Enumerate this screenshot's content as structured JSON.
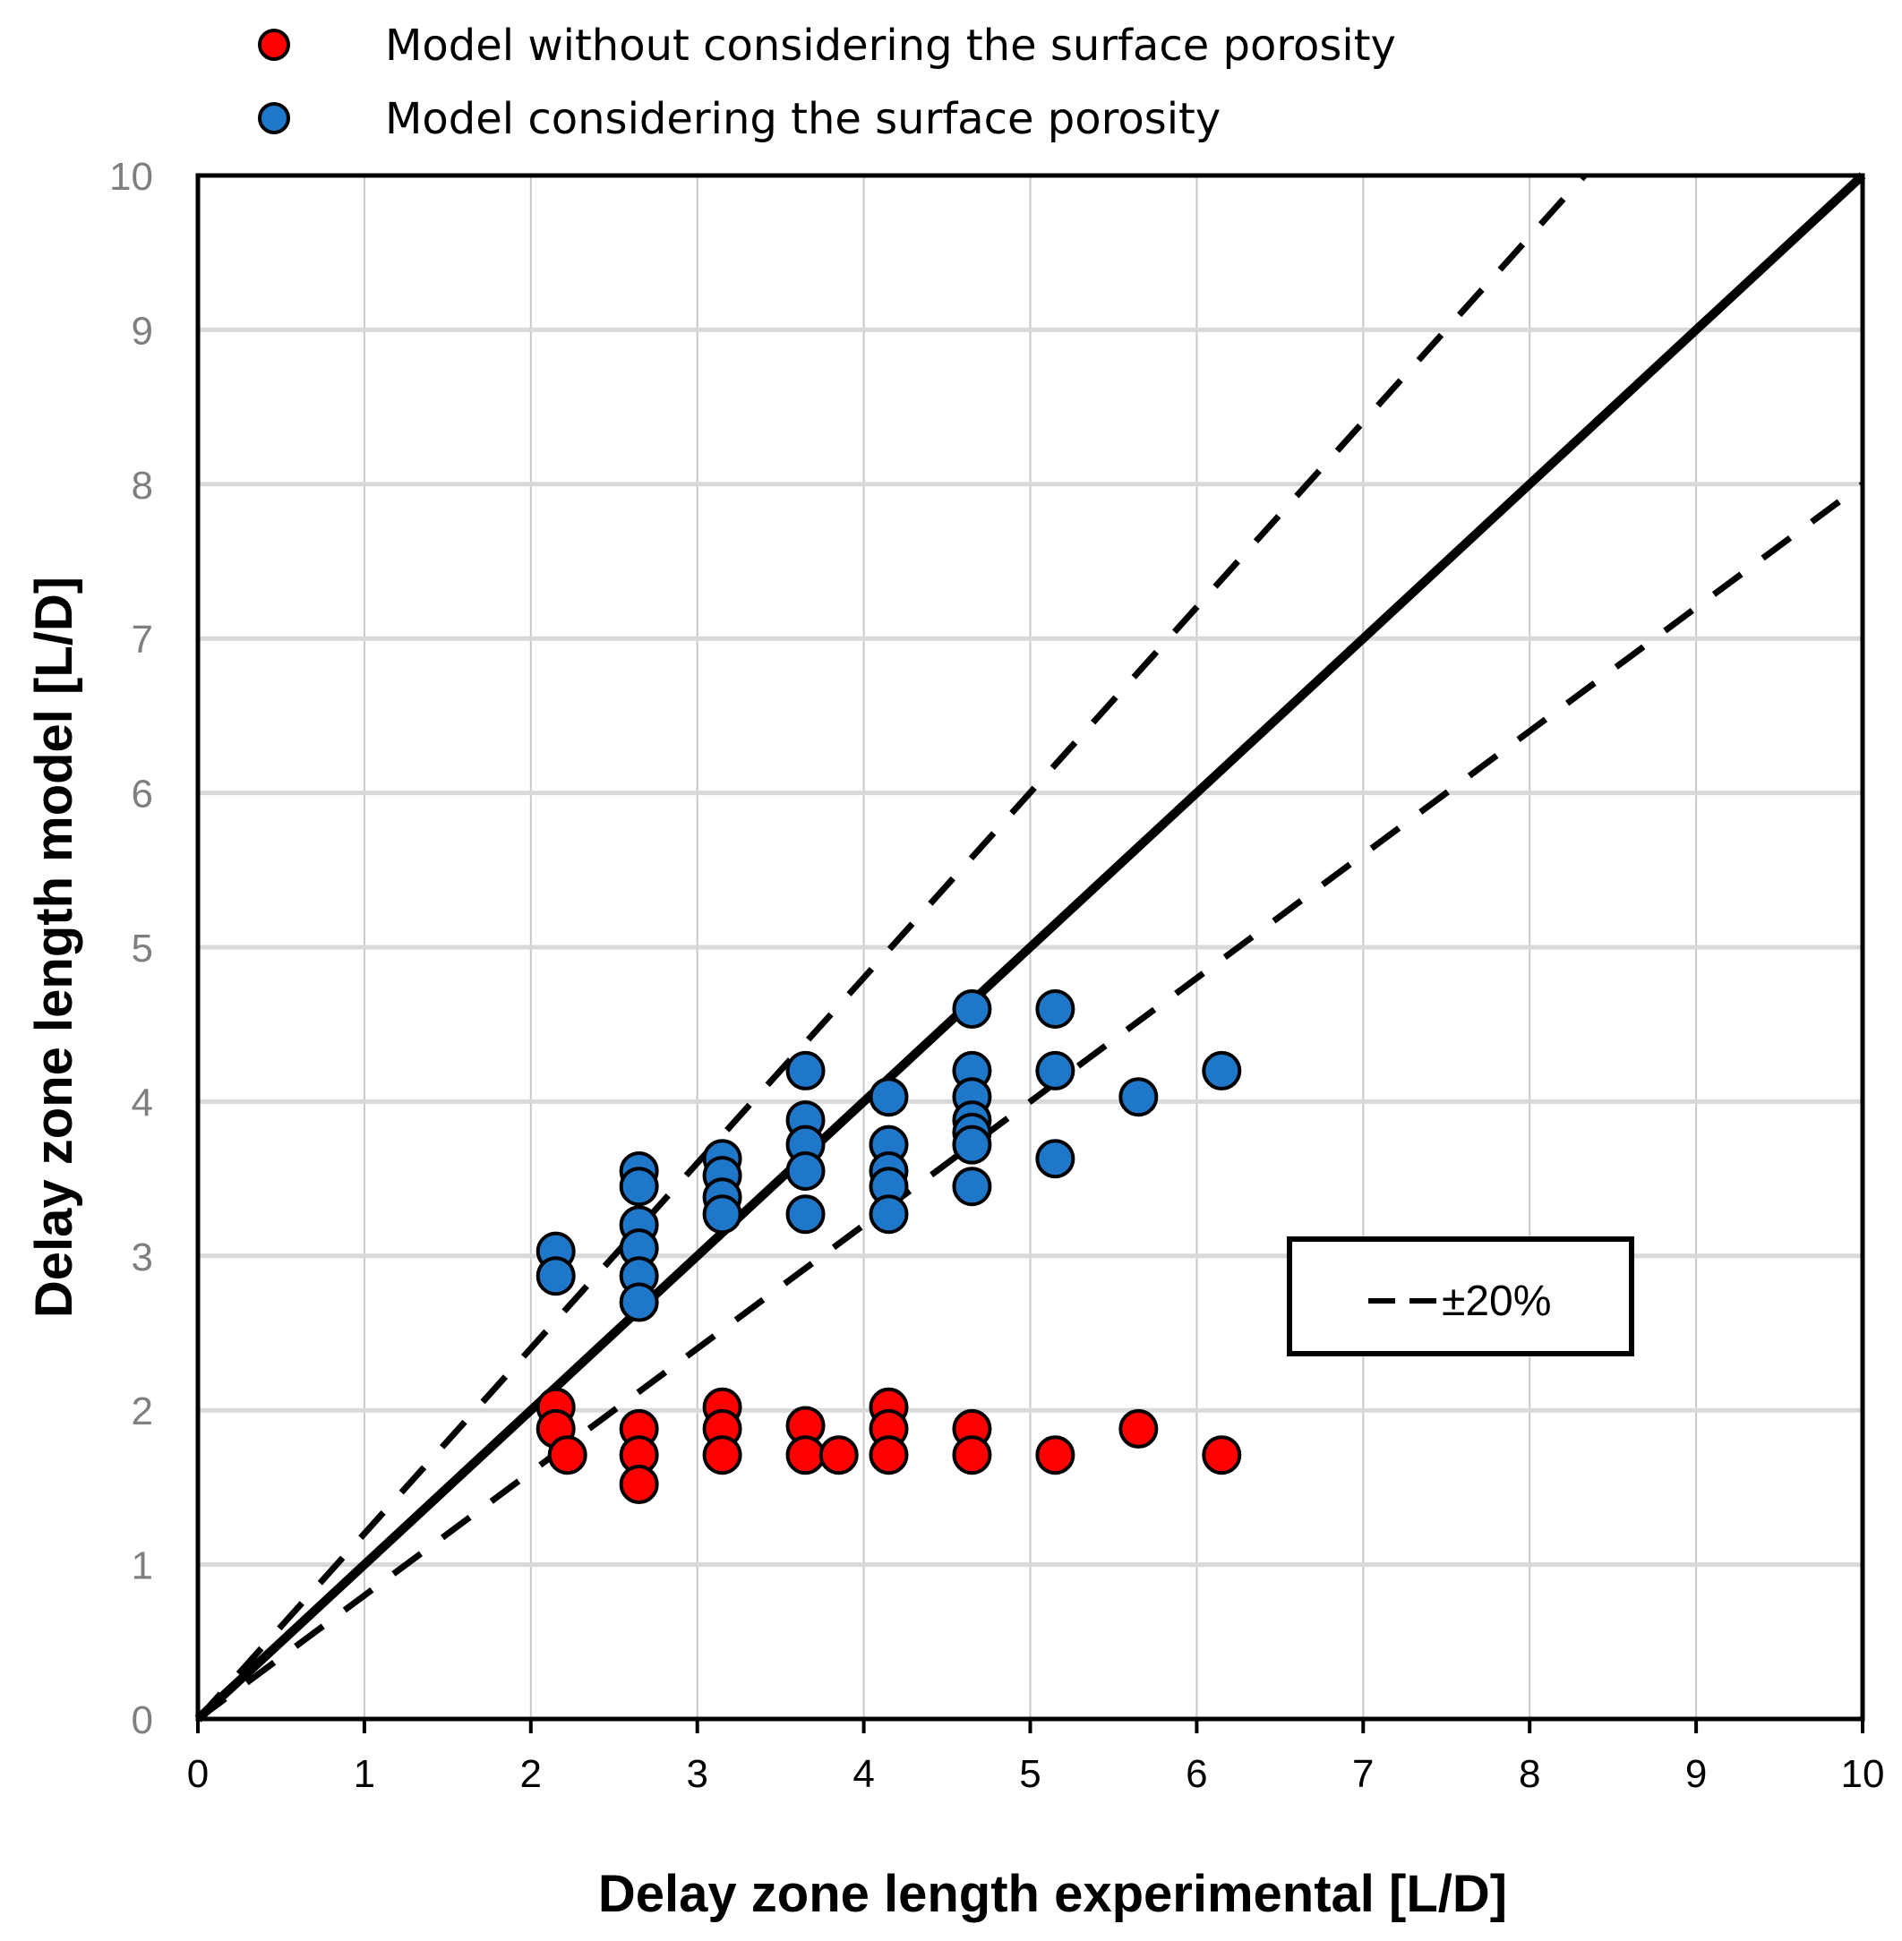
{
  "chart_data": {
    "type": "scatter",
    "xlabel": "Delay zone length experimental [L/D]",
    "ylabel": "Delay zone length model [L/D]",
    "xlim": [
      0,
      10
    ],
    "ylim": [
      0,
      10
    ],
    "x_ticks": [
      "0",
      "1",
      "2",
      "3",
      "4",
      "5",
      "6",
      "7",
      "8",
      "9",
      "10"
    ],
    "y_ticks": [
      "0",
      "1",
      "2",
      "3",
      "4",
      "5",
      "6",
      "7",
      "8",
      "9",
      "10"
    ],
    "grid": true,
    "legend_position": "top",
    "series": [
      {
        "name": "Model without considering the surface porosity",
        "color": "#ff0000",
        "points": [
          [
            2.15,
            2.02
          ],
          [
            2.15,
            1.88
          ],
          [
            2.22,
            1.71
          ],
          [
            2.65,
            1.88
          ],
          [
            2.65,
            1.71
          ],
          [
            2.65,
            1.52
          ],
          [
            3.15,
            2.02
          ],
          [
            3.15,
            1.88
          ],
          [
            3.15,
            1.71
          ],
          [
            3.65,
            1.9
          ],
          [
            3.65,
            1.71
          ],
          [
            3.85,
            1.71
          ],
          [
            4.15,
            2.02
          ],
          [
            4.15,
            1.88
          ],
          [
            4.15,
            1.71
          ],
          [
            4.65,
            1.88
          ],
          [
            4.65,
            1.71
          ],
          [
            5.15,
            1.71
          ],
          [
            5.65,
            1.88
          ],
          [
            6.15,
            1.71
          ]
        ]
      },
      {
        "name": "Model considering the surface porosity",
        "color": "#1f77c9",
        "points": [
          [
            2.15,
            3.03
          ],
          [
            2.15,
            2.87
          ],
          [
            2.65,
            3.55
          ],
          [
            2.65,
            3.45
          ],
          [
            2.65,
            3.2
          ],
          [
            2.65,
            3.05
          ],
          [
            2.65,
            2.87
          ],
          [
            2.65,
            2.7
          ],
          [
            3.15,
            3.63
          ],
          [
            3.15,
            3.52
          ],
          [
            3.15,
            3.38
          ],
          [
            3.15,
            3.27
          ],
          [
            3.65,
            4.2
          ],
          [
            3.65,
            3.88
          ],
          [
            3.65,
            3.72
          ],
          [
            3.65,
            3.55
          ],
          [
            3.65,
            3.27
          ],
          [
            4.15,
            4.03
          ],
          [
            4.15,
            3.72
          ],
          [
            4.15,
            3.55
          ],
          [
            4.15,
            3.45
          ],
          [
            4.15,
            3.27
          ],
          [
            4.65,
            4.6
          ],
          [
            4.65,
            4.2
          ],
          [
            4.65,
            4.03
          ],
          [
            4.65,
            3.88
          ],
          [
            4.65,
            3.8
          ],
          [
            4.65,
            3.72
          ],
          [
            4.65,
            3.45
          ],
          [
            5.15,
            4.6
          ],
          [
            5.15,
            4.2
          ],
          [
            5.15,
            3.63
          ],
          [
            5.65,
            4.03
          ],
          [
            6.15,
            4.2
          ]
        ]
      }
    ],
    "reference_lines": [
      {
        "style": "solid",
        "from": [
          0,
          0
        ],
        "to": [
          10,
          10
        ]
      },
      {
        "style": "dashed",
        "from": [
          0,
          0
        ],
        "to": [
          8.33,
          10
        ]
      },
      {
        "style": "dashed",
        "from": [
          0,
          0
        ],
        "to": [
          10,
          8
        ]
      }
    ],
    "annotation": {
      "label": "±20%"
    }
  }
}
